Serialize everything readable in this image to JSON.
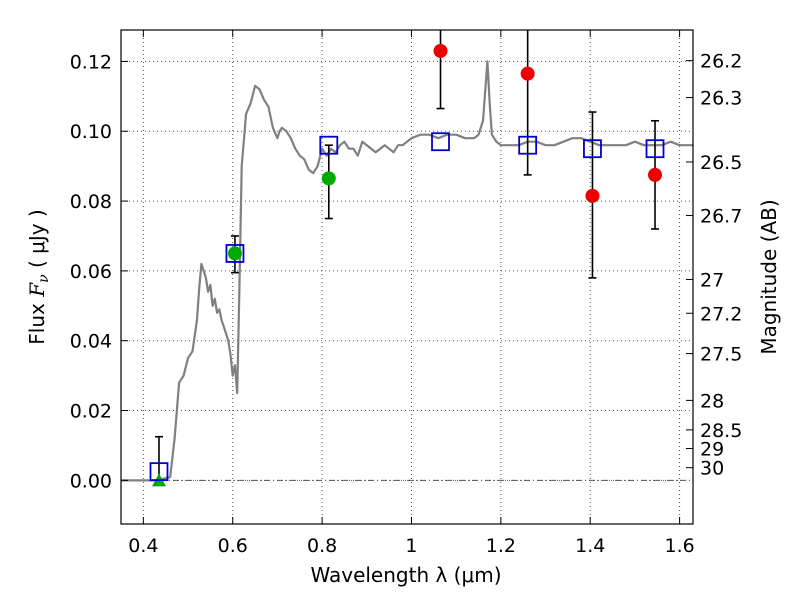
{
  "chart_data": {
    "type": "scatter",
    "title": "",
    "xlabel": "Wavelength  λ (μm)",
    "ylabel": {
      "prefix": "Flux  ",
      "symbol": "F",
      "subscript": "ν",
      "unit": "  ( μJy )"
    },
    "y2label": "Magnitude (AB)",
    "xlim": [
      0.35,
      1.63
    ],
    "ylim": [
      -0.0125,
      0.129
    ],
    "grid": true,
    "x_ticks": [
      {
        "value": 0.4,
        "label": "0.4"
      },
      {
        "value": 0.6,
        "label": "0.6"
      },
      {
        "value": 0.8,
        "label": "0.8"
      },
      {
        "value": 1.0,
        "label": "1"
      },
      {
        "value": 1.2,
        "label": "1.2"
      },
      {
        "value": 1.4,
        "label": "1.4"
      },
      {
        "value": 1.6,
        "label": "1.6"
      }
    ],
    "y_ticks": [
      {
        "value": 0.0,
        "label": "0.00"
      },
      {
        "value": 0.02,
        "label": "0.02"
      },
      {
        "value": 0.04,
        "label": "0.04"
      },
      {
        "value": 0.06,
        "label": "0.06"
      },
      {
        "value": 0.08,
        "label": "0.08"
      },
      {
        "value": 0.1,
        "label": "0.10"
      },
      {
        "value": 0.12,
        "label": "0.12"
      }
    ],
    "y2_ticks": [
      {
        "value": 26.2,
        "label": "26.2"
      },
      {
        "value": 26.3,
        "label": "26.3"
      },
      {
        "value": 26.5,
        "label": "26.5"
      },
      {
        "value": 26.7,
        "label": "26.7"
      },
      {
        "value": 27.0,
        "label": "27"
      },
      {
        "value": 27.2,
        "label": "27.2"
      },
      {
        "value": 27.5,
        "label": "27.5"
      },
      {
        "value": 28.0,
        "label": "28"
      },
      {
        "value": 28.5,
        "label": "28.5"
      },
      {
        "value": 29.0,
        "label": "29"
      },
      {
        "value": 30.0,
        "label": "30"
      }
    ],
    "colors": {
      "model": "#808080",
      "model_points": "#0000cc",
      "green": "#00aa00",
      "red": "#ee0000",
      "errorbar": "#000000",
      "grid": "#555555",
      "zero_line": "#555555"
    },
    "series": [
      {
        "kind": "spectrum",
        "x": [
          0.35,
          0.4,
          0.43,
          0.46,
          0.47,
          0.48,
          0.49,
          0.5,
          0.51,
          0.52,
          0.525,
          0.53,
          0.54,
          0.545,
          0.55,
          0.555,
          0.56,
          0.565,
          0.57,
          0.575,
          0.58,
          0.59,
          0.595,
          0.6,
          0.605,
          0.61,
          0.615,
          0.62,
          0.63,
          0.64,
          0.65,
          0.66,
          0.67,
          0.68,
          0.69,
          0.7,
          0.705,
          0.71,
          0.72,
          0.73,
          0.74,
          0.75,
          0.76,
          0.77,
          0.78,
          0.79,
          0.8,
          0.81,
          0.82,
          0.83,
          0.84,
          0.85,
          0.86,
          0.87,
          0.88,
          0.89,
          0.9,
          0.92,
          0.93,
          0.94,
          0.95,
          0.96,
          0.97,
          0.98,
          0.99,
          1.0,
          1.02,
          1.04,
          1.06,
          1.08,
          1.1,
          1.12,
          1.14,
          1.15,
          1.16,
          1.17,
          1.175,
          1.18,
          1.19,
          1.2,
          1.22,
          1.24,
          1.26,
          1.28,
          1.3,
          1.32,
          1.34,
          1.36,
          1.38,
          1.4,
          1.42,
          1.44,
          1.46,
          1.48,
          1.5,
          1.52,
          1.54,
          1.56,
          1.58,
          1.6,
          1.63
        ],
        "y": [
          0.0,
          0.0,
          0.0,
          0.001,
          0.012,
          0.028,
          0.03,
          0.035,
          0.037,
          0.046,
          0.055,
          0.062,
          0.058,
          0.054,
          0.056,
          0.05,
          0.052,
          0.048,
          0.049,
          0.046,
          0.044,
          0.04,
          0.036,
          0.03,
          0.033,
          0.025,
          0.055,
          0.09,
          0.105,
          0.108,
          0.113,
          0.112,
          0.109,
          0.107,
          0.101,
          0.098,
          0.1,
          0.101,
          0.1,
          0.098,
          0.095,
          0.093,
          0.092,
          0.089,
          0.088,
          0.09,
          0.095,
          0.093,
          0.095,
          0.094,
          0.096,
          0.097,
          0.095,
          0.095,
          0.093,
          0.097,
          0.096,
          0.094,
          0.095,
          0.096,
          0.095,
          0.094,
          0.096,
          0.096,
          0.097,
          0.098,
          0.099,
          0.099,
          0.098,
          0.099,
          0.099,
          0.098,
          0.098,
          0.099,
          0.103,
          0.12,
          0.108,
          0.099,
          0.097,
          0.096,
          0.096,
          0.096,
          0.097,
          0.097,
          0.096,
          0.096,
          0.097,
          0.098,
          0.098,
          0.097,
          0.096,
          0.096,
          0.096,
          0.096,
          0.097,
          0.096,
          0.096,
          0.096,
          0.097,
          0.096,
          0.096
        ]
      },
      {
        "kind": "model_points",
        "marker": "open-square",
        "x": [
          0.435,
          0.605,
          0.815,
          1.065,
          1.26,
          1.405,
          1.545
        ],
        "y": [
          0.0025,
          0.065,
          0.096,
          0.097,
          0.096,
          0.095,
          0.095
        ]
      },
      {
        "kind": "green_points",
        "marker": "filled-circle",
        "x": [
          0.605,
          0.815
        ],
        "y": [
          0.065,
          0.0865
        ]
      },
      {
        "kind": "green_upper_limit",
        "marker": "filled-triangle",
        "x": [
          0.435
        ],
        "y": [
          0.0
        ]
      },
      {
        "kind": "red_points",
        "marker": "filled-circle",
        "x": [
          1.065,
          1.26,
          1.405,
          1.545
        ],
        "y": [
          0.123,
          0.1165,
          0.0815,
          0.0875
        ]
      }
    ],
    "errorbars": [
      {
        "x": 0.435,
        "low": 0.0,
        "high": 0.0125
      },
      {
        "x": 0.605,
        "low": 0.0595,
        "high": 0.07
      },
      {
        "x": 0.815,
        "low": 0.075,
        "high": 0.096
      },
      {
        "x": 1.065,
        "low": 0.1065,
        "high": 0.13
      },
      {
        "x": 1.26,
        "low": 0.0875,
        "high": 0.13
      },
      {
        "x": 1.405,
        "low": 0.058,
        "high": 0.1055
      },
      {
        "x": 1.545,
        "low": 0.072,
        "high": 0.103
      }
    ]
  }
}
